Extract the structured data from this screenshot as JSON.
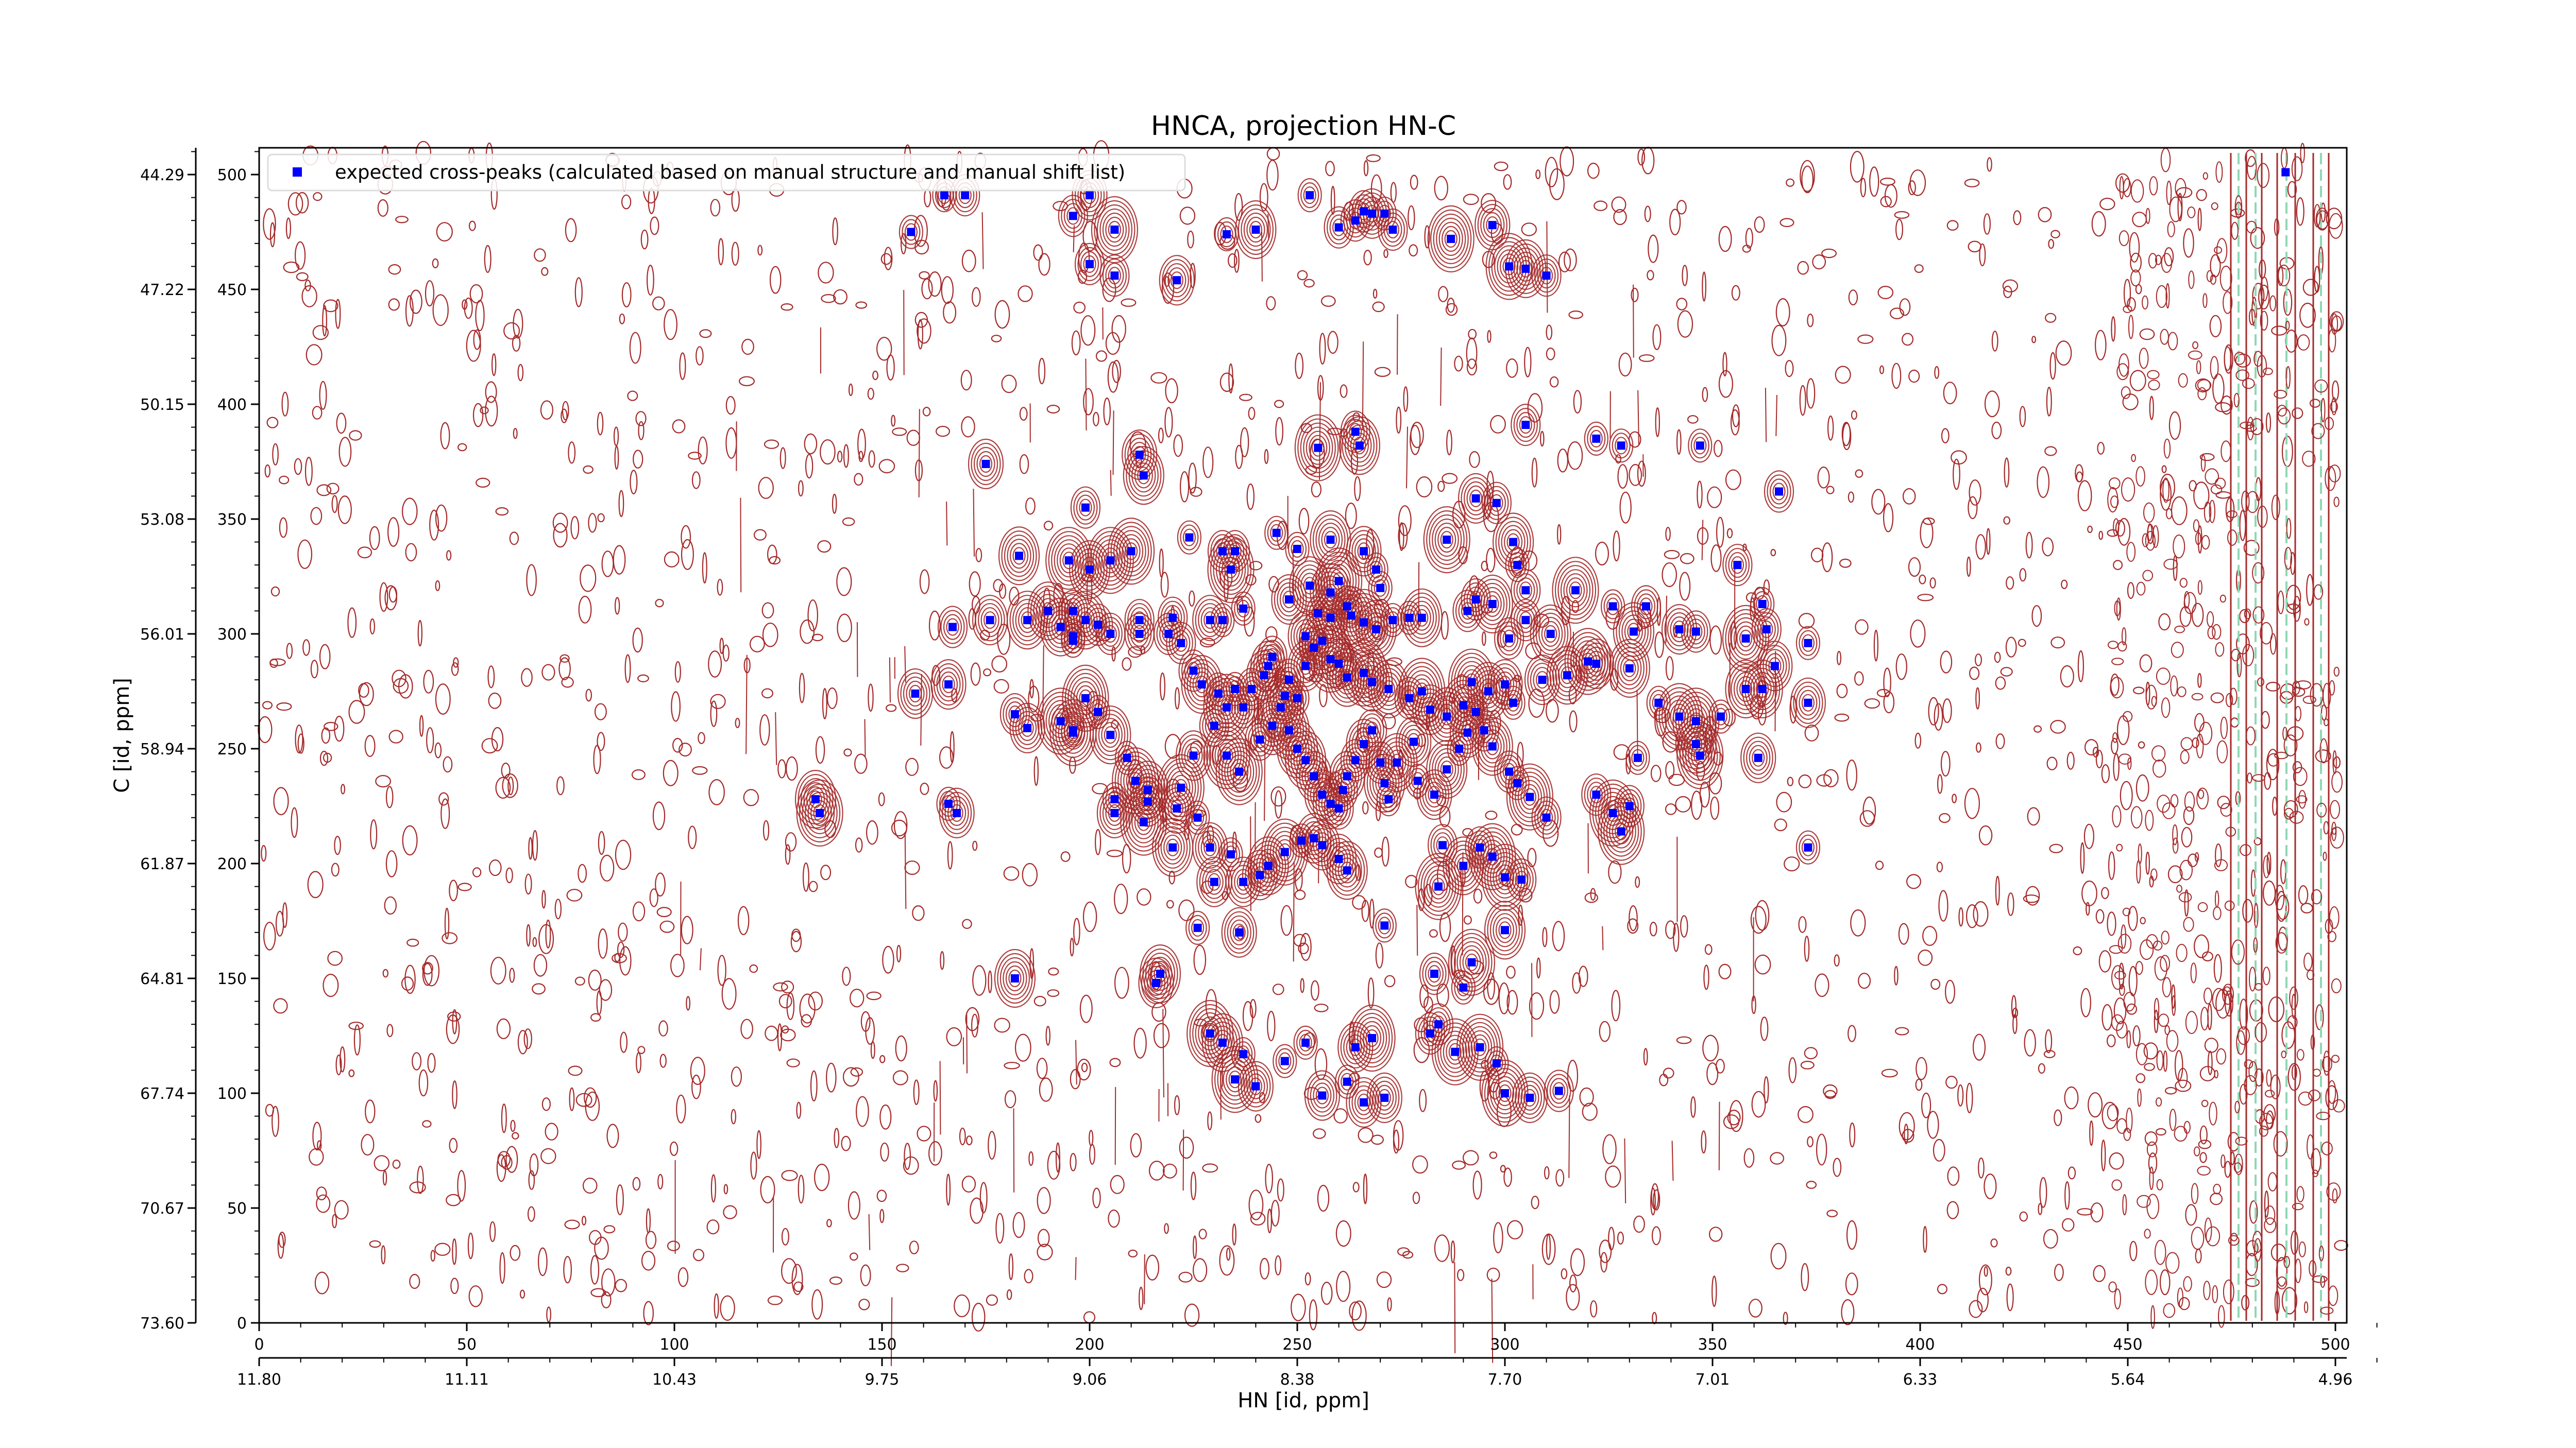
{
  "chart_data": {
    "type": "scatter",
    "title": "HNCA, projection HN-C",
    "xlabel": "HN [id, ppm]",
    "ylabel": "C [id, ppm]",
    "xlim": [
      0,
      510
    ],
    "ylim": [
      0,
      510
    ],
    "grid": false,
    "legend_position": "top-left",
    "x_ticks_index": [
      "0",
      "50",
      "100",
      "150",
      "200",
      "250",
      "300",
      "350",
      "400",
      "450",
      "500"
    ],
    "x_ticks_ppm": [
      "11.80",
      "11.11",
      "10.43",
      "9.75",
      "9.06",
      "8.38",
      "7.70",
      "7.01",
      "6.33",
      "5.64",
      "4.96"
    ],
    "y_ticks_index": [
      "500",
      "450",
      "400",
      "350",
      "300",
      "250",
      "200",
      "150",
      "100",
      "50",
      "0"
    ],
    "y_ticks_ppm": [
      "44.29",
      "47.22",
      "50.15",
      "53.08",
      "56.01",
      "58.94",
      "61.87",
      "64.81",
      "67.74",
      "70.67",
      "73.60"
    ],
    "series": [
      {
        "name": "expected cross-peaks (calculated based on manual structure and manual shift list)",
        "color": "#0000ff",
        "marker": "square",
        "points": [
          [
            488,
            501
          ],
          [
            157,
            475
          ],
          [
            165,
            491
          ],
          [
            170,
            491
          ],
          [
            196,
            482
          ],
          [
            200,
            491
          ],
          [
            206,
            476
          ],
          [
            233,
            474
          ],
          [
            240,
            476
          ],
          [
            253,
            491
          ],
          [
            260,
            477
          ],
          [
            264,
            480
          ],
          [
            266,
            484
          ],
          [
            268,
            483
          ],
          [
            271,
            483
          ],
          [
            273,
            476
          ],
          [
            287,
            472
          ],
          [
            297,
            478
          ],
          [
            301,
            460
          ],
          [
            305,
            459
          ],
          [
            310,
            456
          ],
          [
            200,
            461
          ],
          [
            206,
            456
          ],
          [
            221,
            454
          ],
          [
            255,
            381
          ],
          [
            264,
            388
          ],
          [
            265,
            382
          ],
          [
            305,
            391
          ],
          [
            322,
            385
          ],
          [
            328,
            382
          ],
          [
            347,
            382
          ],
          [
            175,
            374
          ],
          [
            212,
            378
          ],
          [
            213,
            369
          ],
          [
            224,
            342
          ],
          [
            232,
            336
          ],
          [
            235,
            336
          ],
          [
            234,
            328
          ],
          [
            245,
            344
          ],
          [
            250,
            337
          ],
          [
            253,
            321
          ],
          [
            258,
            341
          ],
          [
            258,
            318
          ],
          [
            260,
            323
          ],
          [
            266,
            336
          ],
          [
            269,
            328
          ],
          [
            270,
            320
          ],
          [
            286,
            341
          ],
          [
            293,
            359
          ],
          [
            298,
            357
          ],
          [
            302,
            340
          ],
          [
            303,
            330
          ],
          [
            305,
            319
          ],
          [
            183,
            334
          ],
          [
            195,
            332
          ],
          [
            200,
            328
          ],
          [
            199,
            355
          ],
          [
            205,
            332
          ],
          [
            210,
            336
          ],
          [
            212,
            306
          ],
          [
            220,
            307
          ],
          [
            229,
            306
          ],
          [
            232,
            306
          ],
          [
            237,
            311
          ],
          [
            248,
            315
          ],
          [
            252,
            299
          ],
          [
            255,
            309
          ],
          [
            258,
            307
          ],
          [
            262,
            312
          ],
          [
            263,
            308
          ],
          [
            266,
            305
          ],
          [
            269,
            302
          ],
          [
            273,
            306
          ],
          [
            277,
            307
          ],
          [
            280,
            307
          ],
          [
            291,
            310
          ],
          [
            293,
            315
          ],
          [
            297,
            313
          ],
          [
            301,
            298
          ],
          [
            305,
            306
          ],
          [
            311,
            300
          ],
          [
            317,
            319
          ],
          [
            326,
            312
          ],
          [
            334,
            312
          ],
          [
            331,
            301
          ],
          [
            342,
            302
          ],
          [
            346,
            301
          ],
          [
            356,
            330
          ],
          [
            362,
            313
          ],
          [
            363,
            302
          ],
          [
            358,
            298
          ],
          [
            366,
            362
          ],
          [
            167,
            303
          ],
          [
            176,
            306
          ],
          [
            185,
            306
          ],
          [
            190,
            310
          ],
          [
            193,
            303
          ],
          [
            196,
            310
          ],
          [
            196,
            299
          ],
          [
            196,
            297
          ],
          [
            199,
            306
          ],
          [
            202,
            304
          ],
          [
            205,
            300
          ],
          [
            212,
            300
          ],
          [
            219,
            300
          ],
          [
            222,
            296
          ],
          [
            225,
            284
          ],
          [
            227,
            278
          ],
          [
            231,
            274
          ],
          [
            233,
            268
          ],
          [
            235,
            276
          ],
          [
            237,
            268
          ],
          [
            239,
            276
          ],
          [
            242,
            282
          ],
          [
            243,
            286
          ],
          [
            244,
            290
          ],
          [
            247,
            273
          ],
          [
            248,
            280
          ],
          [
            250,
            272
          ],
          [
            252,
            286
          ],
          [
            254,
            294
          ],
          [
            256,
            297
          ],
          [
            258,
            289
          ],
          [
            260,
            287
          ],
          [
            262,
            281
          ],
          [
            266,
            283
          ],
          [
            268,
            279
          ],
          [
            272,
            276
          ],
          [
            277,
            272
          ],
          [
            280,
            275
          ],
          [
            282,
            267
          ],
          [
            286,
            264
          ],
          [
            290,
            269
          ],
          [
            292,
            279
          ],
          [
            296,
            275
          ],
          [
            300,
            278
          ],
          [
            302,
            270
          ],
          [
            309,
            280
          ],
          [
            315,
            282
          ],
          [
            320,
            288
          ],
          [
            322,
            287
          ],
          [
            330,
            285
          ],
          [
            337,
            270
          ],
          [
            342,
            264
          ],
          [
            346,
            262
          ],
          [
            347,
            247
          ],
          [
            352,
            264
          ],
          [
            358,
            276
          ],
          [
            362,
            276
          ],
          [
            365,
            286
          ],
          [
            373,
            296
          ],
          [
            373,
            270
          ],
          [
            158,
            274
          ],
          [
            166,
            278
          ],
          [
            182,
            265
          ],
          [
            185,
            259
          ],
          [
            193,
            262
          ],
          [
            196,
            258
          ],
          [
            196,
            257
          ],
          [
            199,
            272
          ],
          [
            202,
            266
          ],
          [
            205,
            256
          ],
          [
            209,
            246
          ],
          [
            211,
            236
          ],
          [
            214,
            232
          ],
          [
            206,
            228
          ],
          [
            214,
            227
          ],
          [
            221,
            224
          ],
          [
            226,
            220
          ],
          [
            222,
            233
          ],
          [
            225,
            247
          ],
          [
            230,
            260
          ],
          [
            233,
            247
          ],
          [
            236,
            240
          ],
          [
            241,
            254
          ],
          [
            244,
            260
          ],
          [
            246,
            268
          ],
          [
            248,
            258
          ],
          [
            250,
            250
          ],
          [
            252,
            245
          ],
          [
            254,
            238
          ],
          [
            256,
            230
          ],
          [
            258,
            226
          ],
          [
            260,
            224
          ],
          [
            261,
            232
          ],
          [
            262,
            238
          ],
          [
            264,
            245
          ],
          [
            266,
            252
          ],
          [
            268,
            258
          ],
          [
            270,
            244
          ],
          [
            271,
            235
          ],
          [
            272,
            228
          ],
          [
            274,
            244
          ],
          [
            278,
            253
          ],
          [
            279,
            236
          ],
          [
            283,
            230
          ],
          [
            286,
            241
          ],
          [
            289,
            250
          ],
          [
            291,
            257
          ],
          [
            293,
            266
          ],
          [
            295,
            258
          ],
          [
            297,
            251
          ],
          [
            301,
            240
          ],
          [
            303,
            235
          ],
          [
            306,
            229
          ],
          [
            310,
            220
          ],
          [
            322,
            230
          ],
          [
            326,
            222
          ],
          [
            328,
            214
          ],
          [
            330,
            225
          ],
          [
            332,
            246
          ],
          [
            346,
            252
          ],
          [
            361,
            246
          ],
          [
            373,
            207
          ],
          [
            134,
            228
          ],
          [
            135,
            222
          ],
          [
            166,
            226
          ],
          [
            168,
            222
          ],
          [
            206,
            222
          ],
          [
            213,
            218
          ],
          [
            220,
            207
          ],
          [
            229,
            207
          ],
          [
            234,
            204
          ],
          [
            237,
            192
          ],
          [
            241,
            195
          ],
          [
            243,
            199
          ],
          [
            247,
            205
          ],
          [
            251,
            210
          ],
          [
            254,
            211
          ],
          [
            256,
            208
          ],
          [
            260,
            202
          ],
          [
            262,
            197
          ],
          [
            285,
            208
          ],
          [
            290,
            199
          ],
          [
            294,
            207
          ],
          [
            297,
            203
          ],
          [
            300,
            194
          ],
          [
            304,
            193
          ],
          [
            230,
            192
          ],
          [
            226,
            172
          ],
          [
            236,
            170
          ],
          [
            216,
            148
          ],
          [
            217,
            152
          ],
          [
            229,
            126
          ],
          [
            232,
            122
          ],
          [
            237,
            117
          ],
          [
            240,
            103
          ],
          [
            247,
            114
          ],
          [
            252,
            122
          ],
          [
            262,
            105
          ],
          [
            264,
            120
          ],
          [
            268,
            124
          ],
          [
            282,
            126
          ],
          [
            284,
            130
          ],
          [
            288,
            118
          ],
          [
            294,
            120
          ],
          [
            298,
            113
          ],
          [
            300,
            100
          ],
          [
            306,
            98
          ],
          [
            313,
            101
          ],
          [
            271,
            173
          ],
          [
            284,
            190
          ],
          [
            300,
            171
          ],
          [
            283,
            152
          ],
          [
            290,
            146
          ],
          [
            292,
            157
          ],
          [
            235,
            106
          ],
          [
            182,
            150
          ],
          [
            256,
            99
          ],
          [
            266,
            96
          ],
          [
            271,
            98
          ]
        ]
      }
    ]
  },
  "contour_colors": {
    "positive": "#a52a2a",
    "negative_strip": "#8fd8b4",
    "marker": "#0000ff"
  }
}
